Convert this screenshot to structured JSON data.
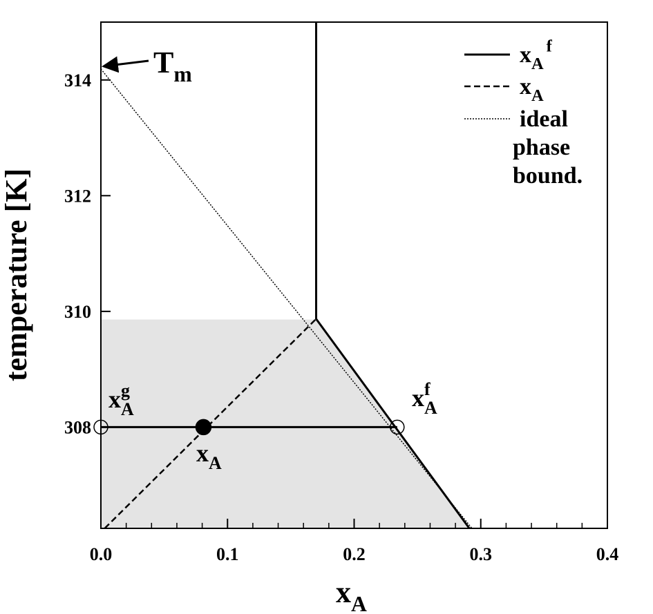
{
  "chart_data": {
    "type": "line",
    "xlabel": {
      "base": "x",
      "sub": "A"
    },
    "ylabel": "temperature [K]",
    "xlim": [
      0,
      0.4
    ],
    "ylim": [
      306.25,
      315
    ],
    "xticks": [
      {
        "value": 0,
        "label": "0.0"
      },
      0.1,
      0.2,
      0.3,
      0.4
    ],
    "xminor_ticks": [
      0.02,
      0.04,
      0.06,
      0.08,
      0.12,
      0.14,
      0.16,
      0.18,
      0.22,
      0.24,
      0.26,
      0.28,
      0.32,
      0.34,
      0.36,
      0.38
    ],
    "yticks": [
      308,
      310,
      312,
      314
    ],
    "shaded_region": {
      "color": "#e4e4e4",
      "x": [
        0,
        0,
        0.17,
        0.291
      ],
      "y": [
        306.25,
        309.86,
        309.86,
        306.25
      ]
    },
    "series": [
      {
        "name": {
          "base": "x",
          "sub": "A",
          "sup": "f"
        },
        "style": "solid",
        "color": "#000000",
        "x": [
          0.17,
          0.17,
          0.291
        ],
        "y": [
          315,
          309.87,
          306.25
        ]
      },
      {
        "name": {
          "base": "x",
          "sub": "A"
        },
        "style": "dashed",
        "color": "#000000",
        "x": [
          0.003,
          0.17
        ],
        "y": [
          306.25,
          309.87
        ]
      },
      {
        "name": [
          "ideal",
          "phase",
          "bound."
        ],
        "style": "dotted",
        "color": "#000000",
        "x": [
          0,
          0.293
        ],
        "y": [
          314.19,
          306.25
        ]
      }
    ],
    "tie_line": {
      "x": [
        0,
        0.234
      ],
      "y": [
        308,
        308
      ]
    },
    "points": [
      {
        "x": 0,
        "y": 308,
        "filled": false
      },
      {
        "x": 0.081,
        "y": 308,
        "filled": true
      },
      {
        "x": 0.234,
        "y": 308,
        "filled": false
      }
    ],
    "annotations": [
      {
        "base": "T",
        "sub": "m"
      },
      {
        "base": "x",
        "sub": "A",
        "sup": "g"
      },
      {
        "base": "x",
        "sub": "A",
        "sup": "f"
      },
      {
        "base": "x",
        "sub": "A"
      }
    ]
  }
}
